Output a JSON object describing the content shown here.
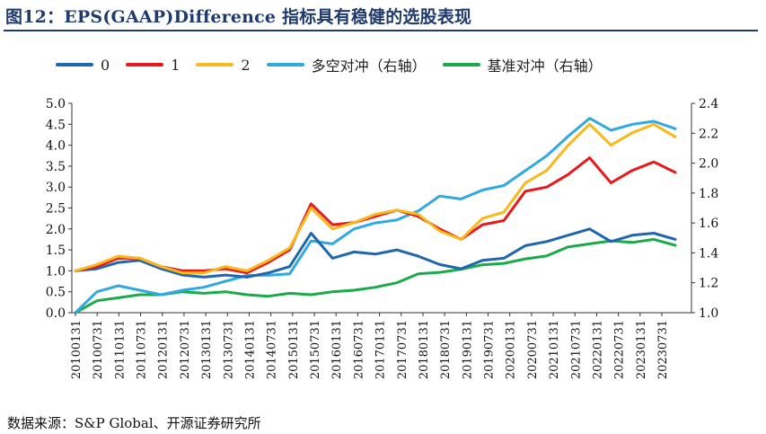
{
  "title": "图12：EPS(GAAP)Difference 指标具有稳健的选股表现",
  "source": "数据来源：S&P Global、开源证券研究所",
  "chart_data": {
    "type": "line",
    "title": "图12：EPS(GAAP)Difference 指标具有稳健的选股表现",
    "ylim_left": [
      0.0,
      5.0
    ],
    "ylim_right": [
      1.0,
      2.4
    ],
    "yticks_left": [
      "0.0",
      "0.5",
      "1.0",
      "1.5",
      "2.0",
      "2.5",
      "3.0",
      "3.5",
      "4.0",
      "4.5",
      "5.0"
    ],
    "yticks_right": [
      "1.0",
      "1.2",
      "1.4",
      "1.6",
      "1.8",
      "2.0",
      "2.2",
      "2.4"
    ],
    "xticks": [
      "20100131",
      "20100731",
      "20110131",
      "20110731",
      "20120131",
      "20120731",
      "20130131",
      "20130731",
      "20140131",
      "20140731",
      "20150131",
      "20150731",
      "20160131",
      "20160731",
      "20170131",
      "20170731",
      "20180131",
      "20180731",
      "20190131",
      "20190731",
      "20200131",
      "20200731",
      "20210131",
      "20210731",
      "20220131",
      "20220731",
      "20230131",
      "20230731"
    ],
    "x": [
      "2010-01",
      "2010-07",
      "2011-01",
      "2011-07",
      "2012-01",
      "2012-07",
      "2013-01",
      "2013-07",
      "2014-01",
      "2014-07",
      "2015-01",
      "2015-07",
      "2016-01",
      "2016-07",
      "2017-01",
      "2017-07",
      "2018-01",
      "2018-07",
      "2019-01",
      "2019-07",
      "2020-01",
      "2020-07",
      "2021-01",
      "2021-07",
      "2022-01",
      "2022-07",
      "2023-01",
      "2023-07",
      "2023-12"
    ],
    "series": [
      {
        "name": "0",
        "axis": "left",
        "color": "#1f66b0",
        "values": [
          1.0,
          1.05,
          1.2,
          1.25,
          1.05,
          0.9,
          0.85,
          0.9,
          0.85,
          0.95,
          1.1,
          1.9,
          1.3,
          1.45,
          1.4,
          1.5,
          1.35,
          1.15,
          1.05,
          1.25,
          1.3,
          1.6,
          1.7,
          1.85,
          2.0,
          1.7,
          1.85,
          1.9,
          1.75
        ]
      },
      {
        "name": "1",
        "axis": "left",
        "color": "#e8191c",
        "values": [
          1.0,
          1.1,
          1.3,
          1.3,
          1.1,
          1.0,
          1.0,
          1.05,
          0.95,
          1.2,
          1.5,
          2.6,
          2.1,
          2.15,
          2.3,
          2.45,
          2.3,
          2.0,
          1.75,
          2.1,
          2.2,
          2.9,
          3.0,
          3.3,
          3.7,
          3.1,
          3.4,
          3.6,
          3.35
        ]
      },
      {
        "name": "2",
        "axis": "left",
        "color": "#f9b81b",
        "values": [
          1.0,
          1.15,
          1.35,
          1.3,
          1.1,
          0.95,
          0.95,
          1.1,
          1.0,
          1.25,
          1.55,
          2.5,
          2.0,
          2.15,
          2.35,
          2.45,
          2.35,
          1.95,
          1.75,
          2.25,
          2.4,
          3.1,
          3.4,
          4.0,
          4.5,
          4.0,
          4.3,
          4.5,
          4.2
        ]
      },
      {
        "name": "多空对冲（右轴）",
        "axis": "right",
        "color": "#30a8e0",
        "values": [
          1.0,
          1.14,
          1.18,
          1.15,
          1.12,
          1.15,
          1.17,
          1.21,
          1.25,
          1.25,
          1.26,
          1.48,
          1.46,
          1.56,
          1.6,
          1.62,
          1.68,
          1.78,
          1.76,
          1.82,
          1.85,
          1.95,
          2.05,
          2.18,
          2.3,
          2.22,
          2.26,
          2.28,
          2.23
        ]
      },
      {
        "name": "基准对冲（右轴）",
        "axis": "right",
        "color": "#1aaa4a",
        "values": [
          1.0,
          1.08,
          1.1,
          1.12,
          1.12,
          1.14,
          1.13,
          1.14,
          1.12,
          1.11,
          1.13,
          1.12,
          1.14,
          1.15,
          1.17,
          1.2,
          1.26,
          1.27,
          1.29,
          1.32,
          1.33,
          1.36,
          1.38,
          1.44,
          1.46,
          1.48,
          1.47,
          1.49,
          1.45
        ]
      }
    ]
  }
}
